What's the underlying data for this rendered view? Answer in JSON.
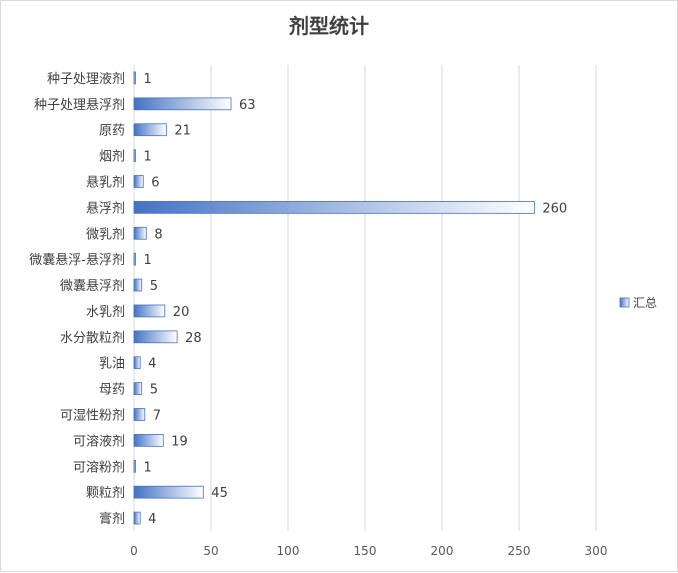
{
  "chart_data": {
    "type": "bar",
    "orientation": "horizontal",
    "title": "剂型统计",
    "categories": [
      "种子处理液剂",
      "种子处理悬浮剂",
      "原药",
      "烟剂",
      "悬乳剂",
      "悬浮剂",
      "微乳剂",
      "微囊悬浮-悬浮剂",
      "微囊悬浮剂",
      "水乳剂",
      "水分散粒剂",
      "乳油",
      "母药",
      "可湿性粉剂",
      "可溶液剂",
      "可溶粉剂",
      "颗粒剂",
      "膏剂"
    ],
    "series": [
      {
        "name": "汇总",
        "values": [
          1,
          63,
          21,
          1,
          6,
          260,
          8,
          1,
          5,
          20,
          28,
          4,
          5,
          7,
          19,
          1,
          45,
          4
        ]
      }
    ],
    "xlim": [
      0,
      340
    ],
    "xticks": [
      0,
      50,
      100,
      150,
      200,
      250,
      300
    ],
    "grid": true,
    "legend": "right",
    "data_labels": true,
    "colors": {
      "bar_dark": "#4472c4",
      "bar_light": "#ffffff",
      "grid": "#d9d9d9",
      "text": "#404040"
    }
  }
}
